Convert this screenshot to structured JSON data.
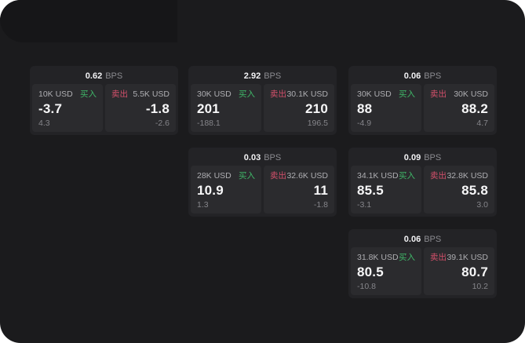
{
  "theme": {
    "backdrop": "#ffffff",
    "page_bg": "#1b1b1d",
    "corner_bg": "#161618",
    "card_bg": "#232326",
    "panel_bg": "#2b2b2e",
    "text_primary": "#f7f7f8",
    "text_muted": "#aeaeb2",
    "text_dim": "#85858a",
    "buy_green": "#3fb768",
    "sell_red": "#d4506b"
  },
  "labels": {
    "bps_suffix": "BPS",
    "buy_label": "买入",
    "sell_label": "卖出"
  },
  "cards": [
    {
      "col": 0,
      "row": 0,
      "bps": "0.62",
      "buy": {
        "size": "10K USD",
        "value": "-3.7",
        "sub": "4.3"
      },
      "sell": {
        "size": "5.5K USD",
        "value": "-1.8",
        "sub": "-2.6"
      }
    },
    {
      "col": 1,
      "row": 0,
      "bps": "2.92",
      "buy": {
        "size": "30K USD",
        "value": "201",
        "sub": "-188.1"
      },
      "sell": {
        "size": "30.1K USD",
        "value": "210",
        "sub": "196.5"
      }
    },
    {
      "col": 2,
      "row": 0,
      "bps": "0.06",
      "buy": {
        "size": "30K USD",
        "value": "88",
        "sub": "-4.9"
      },
      "sell": {
        "size": "30K USD",
        "value": "88.2",
        "sub": "4.7"
      }
    },
    {
      "col": 1,
      "row": 1,
      "bps": "0.03",
      "buy": {
        "size": "28K USD",
        "value": "10.9",
        "sub": "1.3"
      },
      "sell": {
        "size": "32.6K USD",
        "value": "11",
        "sub": "-1.8"
      }
    },
    {
      "col": 2,
      "row": 1,
      "bps": "0.09",
      "buy": {
        "size": "34.1K USD",
        "value": "85.5",
        "sub": "-3.1"
      },
      "sell": {
        "size": "32.8K USD",
        "value": "85.8",
        "sub": "3.0"
      }
    },
    {
      "col": 2,
      "row": 2,
      "bps": "0.06",
      "buy": {
        "size": "31.8K USD",
        "value": "80.5",
        "sub": "-10.8"
      },
      "sell": {
        "size": "39.1K USD",
        "value": "80.7",
        "sub": "10.2"
      }
    }
  ]
}
